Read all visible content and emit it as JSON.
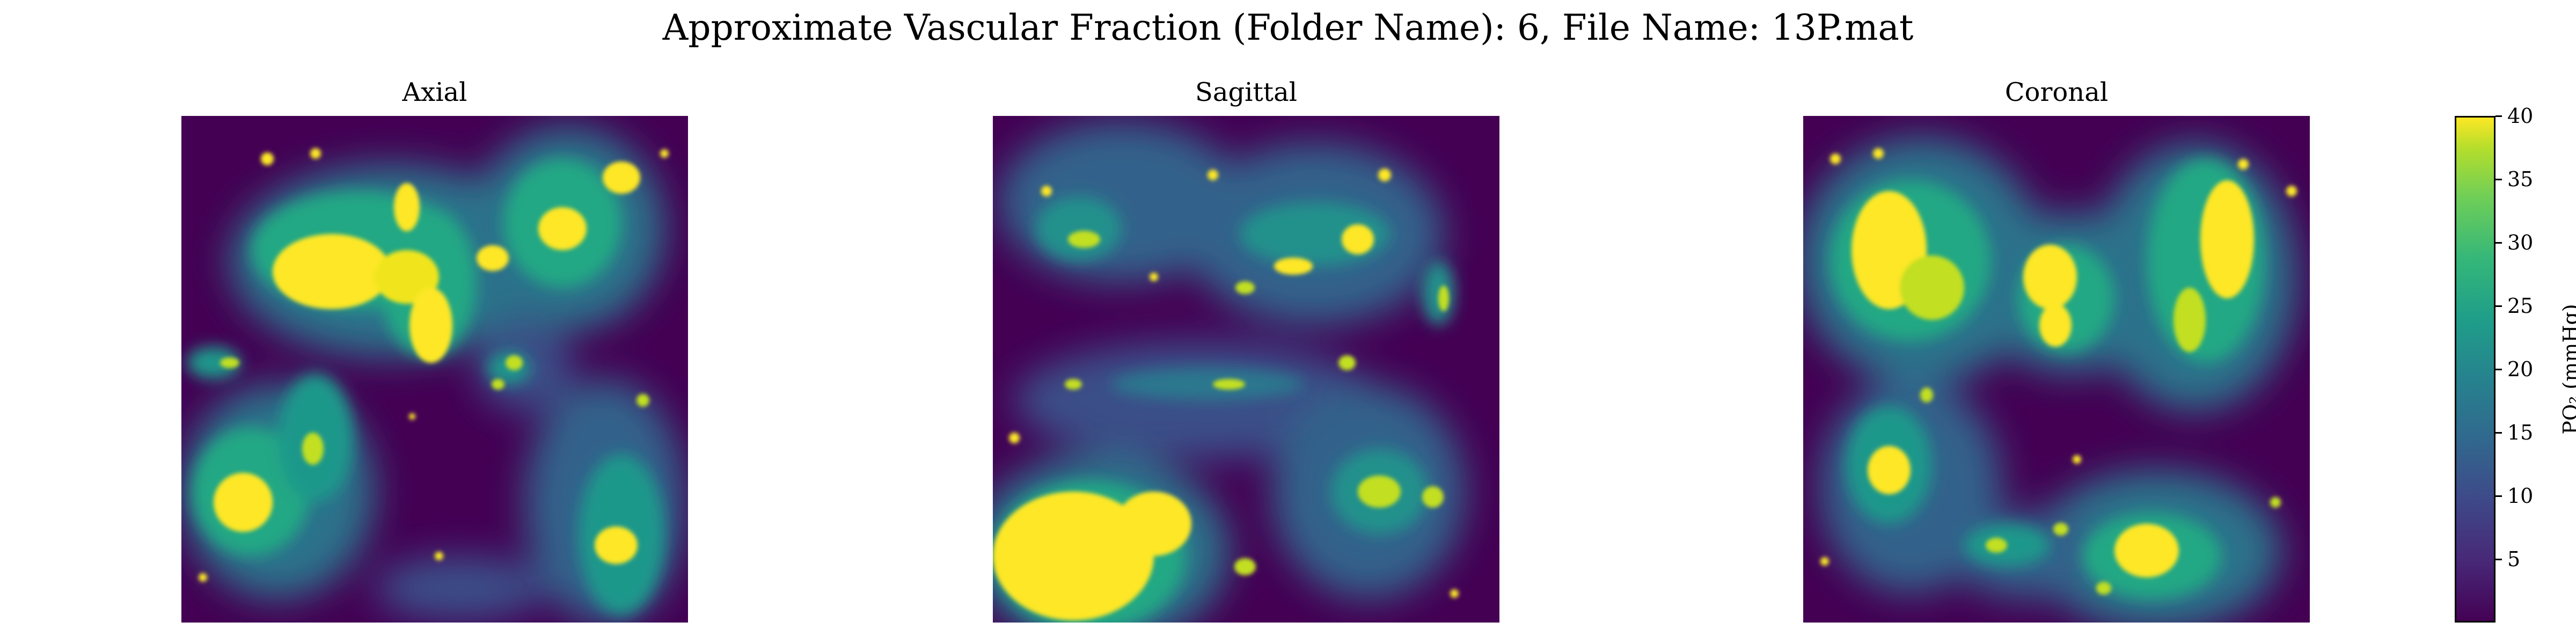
{
  "figure": {
    "suptitle": "Approximate Vascular Fraction (Folder Name): 6, File Name: 13P.mat"
  },
  "chart_data": {
    "type": "heatmap",
    "colormap": "viridis",
    "panels": [
      {
        "title": "Axial"
      },
      {
        "title": "Sagittal"
      },
      {
        "title": "Coronal"
      }
    ],
    "colorbar": {
      "label": "PO₂ (mmHg)",
      "range": [
        0,
        40
      ],
      "ticks": [
        "5",
        "10",
        "15",
        "20",
        "25",
        "30",
        "35",
        "40"
      ]
    }
  }
}
